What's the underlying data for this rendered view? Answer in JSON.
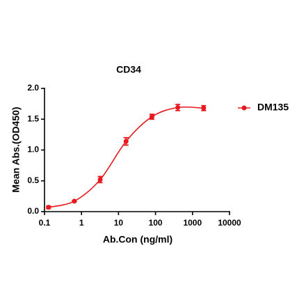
{
  "chart_data": {
    "type": "dose-response",
    "title": "CD34",
    "xlabel": "Ab.Con (ng/ml)",
    "ylabel": "Mean Abs.(OD450)",
    "xscale": "log",
    "xlim": [
      0.1,
      10000
    ],
    "xticks": [
      0.1,
      1,
      10,
      100,
      1000,
      10000
    ],
    "ylim": [
      0,
      2
    ],
    "yticks": [
      {
        "value": 0,
        "label": "0.0"
      },
      0.5,
      {
        "value": 1,
        "label": "1.0"
      },
      1.5,
      {
        "value": 2,
        "label": "2.0"
      }
    ],
    "x": [
      0.128,
      0.64,
      3.2,
      16,
      80,
      400,
      2000
    ],
    "series": [
      {
        "name": "DM135",
        "color": "#e8191c",
        "values": [
          0.07,
          0.17,
          0.52,
          1.14,
          1.54,
          1.69,
          1.68
        ],
        "errors": [
          0.02,
          0.01,
          0.05,
          0.06,
          0.04,
          0.05,
          0.04
        ]
      }
    ],
    "legend": "right",
    "grid": false
  }
}
